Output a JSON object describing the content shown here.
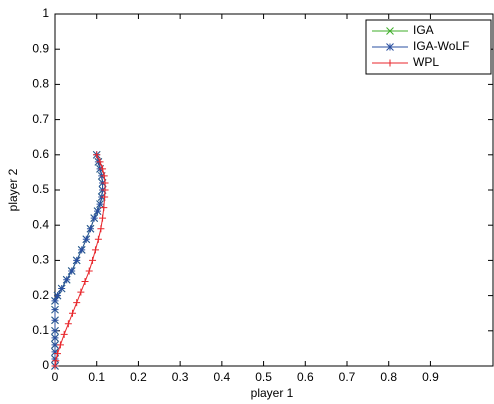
{
  "chart_data": {
    "type": "line",
    "x_label": "player 1",
    "y_label": "player 2",
    "xlim": [
      0,
      1.05
    ],
    "ylim": [
      0,
      1
    ],
    "xticks": [
      0,
      0.1,
      0.2,
      0.3,
      0.4,
      0.5,
      0.6,
      0.7,
      0.8,
      0.9
    ],
    "yticks": [
      0,
      0.1,
      0.2,
      0.3,
      0.4,
      0.5,
      0.6,
      0.7,
      0.8,
      0.9,
      1
    ],
    "legend": "upper right",
    "series": [
      {
        "name": "IGA",
        "color": "#3fae2a",
        "marker": "x",
        "x": [
          0.1,
          0.104,
          0.108,
          0.112,
          0.114,
          0.114,
          0.112,
          0.108,
          0.102,
          0.094,
          0.085,
          0.075,
          0.064,
          0.052,
          0.04,
          0.028,
          0.016,
          0.006,
          0,
          0,
          0,
          0,
          0,
          0,
          0,
          0,
          0
        ],
        "values": [
          0.6,
          0.58,
          0.56,
          0.54,
          0.52,
          0.5,
          0.48,
          0.46,
          0.44,
          0.42,
          0.39,
          0.36,
          0.33,
          0.3,
          0.27,
          0.245,
          0.22,
          0.2,
          0.185,
          0.16,
          0.13,
          0.1,
          0.08,
          0.06,
          0.04,
          0.02,
          0
        ]
      },
      {
        "name": "IGA-WoLF",
        "color": "#2a4fa0",
        "marker": "*",
        "x": [
          0.1,
          0.104,
          0.108,
          0.112,
          0.114,
          0.114,
          0.112,
          0.108,
          0.102,
          0.094,
          0.085,
          0.075,
          0.064,
          0.052,
          0.04,
          0.028,
          0.016,
          0.006,
          0,
          0,
          0,
          0,
          0,
          0,
          0,
          0,
          0
        ],
        "values": [
          0.6,
          0.58,
          0.56,
          0.54,
          0.52,
          0.5,
          0.48,
          0.46,
          0.44,
          0.42,
          0.39,
          0.36,
          0.33,
          0.3,
          0.27,
          0.245,
          0.22,
          0.2,
          0.185,
          0.16,
          0.13,
          0.1,
          0.08,
          0.06,
          0.04,
          0.02,
          0
        ]
      },
      {
        "name": "WPL",
        "color": "#e8262b",
        "marker": "+",
        "x": [
          0.1,
          0.108,
          0.114,
          0.118,
          0.12,
          0.12,
          0.119,
          0.117,
          0.114,
          0.11,
          0.104,
          0.097,
          0.09,
          0.082,
          0.072,
          0.062,
          0.052,
          0.042,
          0.032,
          0.022,
          0.013,
          0.006,
          0.002,
          0
        ],
        "values": [
          0.6,
          0.58,
          0.56,
          0.54,
          0.52,
          0.5,
          0.48,
          0.45,
          0.42,
          0.39,
          0.36,
          0.33,
          0.3,
          0.27,
          0.24,
          0.21,
          0.18,
          0.15,
          0.12,
          0.09,
          0.06,
          0.035,
          0.015,
          0
        ]
      }
    ]
  }
}
